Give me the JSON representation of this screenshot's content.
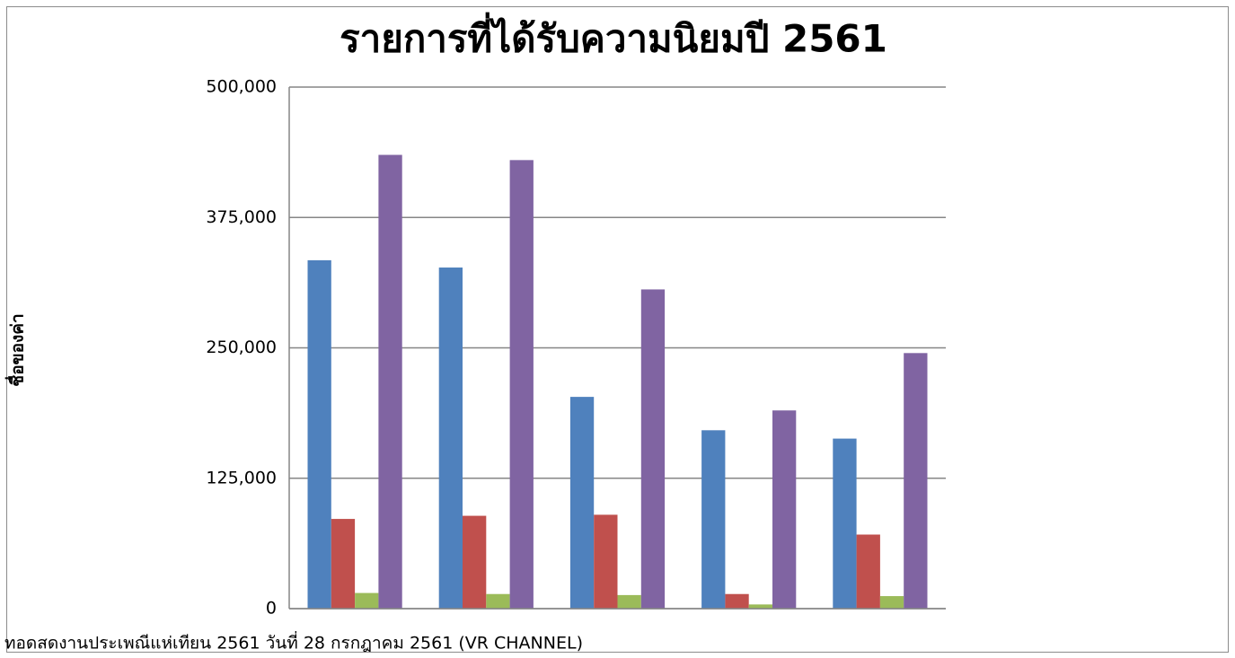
{
  "chart_data": {
    "type": "bar",
    "title": "รายการที่ได้รับความนิยมปี 2561",
    "y_label": "ชื่อของค่า",
    "categories": [
      "ทอดสดงานประเพณีแห่เทียน 2561 วันที่ 28 กรกฎาคม 2561 (VR CHANNEL)",
      null,
      null,
      null,
      null
    ],
    "series": [
      {
        "color": "#4f81bd",
        "values": [
          334000,
          327000,
          203000,
          171000,
          163000
        ]
      },
      {
        "color": "#c0504d",
        "values": [
          86000,
          89000,
          90000,
          14000,
          71000
        ]
      },
      {
        "color": "#9bbb59",
        "values": [
          15000,
          14000,
          13000,
          4000,
          12000
        ]
      },
      {
        "color": "#8064a2",
        "values": [
          435000,
          430000,
          306000,
          190000,
          245000
        ]
      }
    ],
    "ylim": [
      0,
      500000
    ],
    "yticks": [
      0,
      {
        "value": 125000,
        "label": "125,000"
      },
      {
        "value": 250000,
        "label": "250,000"
      },
      {
        "value": 375000,
        "label": "375,000"
      },
      {
        "value": 500000,
        "label": "500,000"
      }
    ],
    "grid": true
  }
}
